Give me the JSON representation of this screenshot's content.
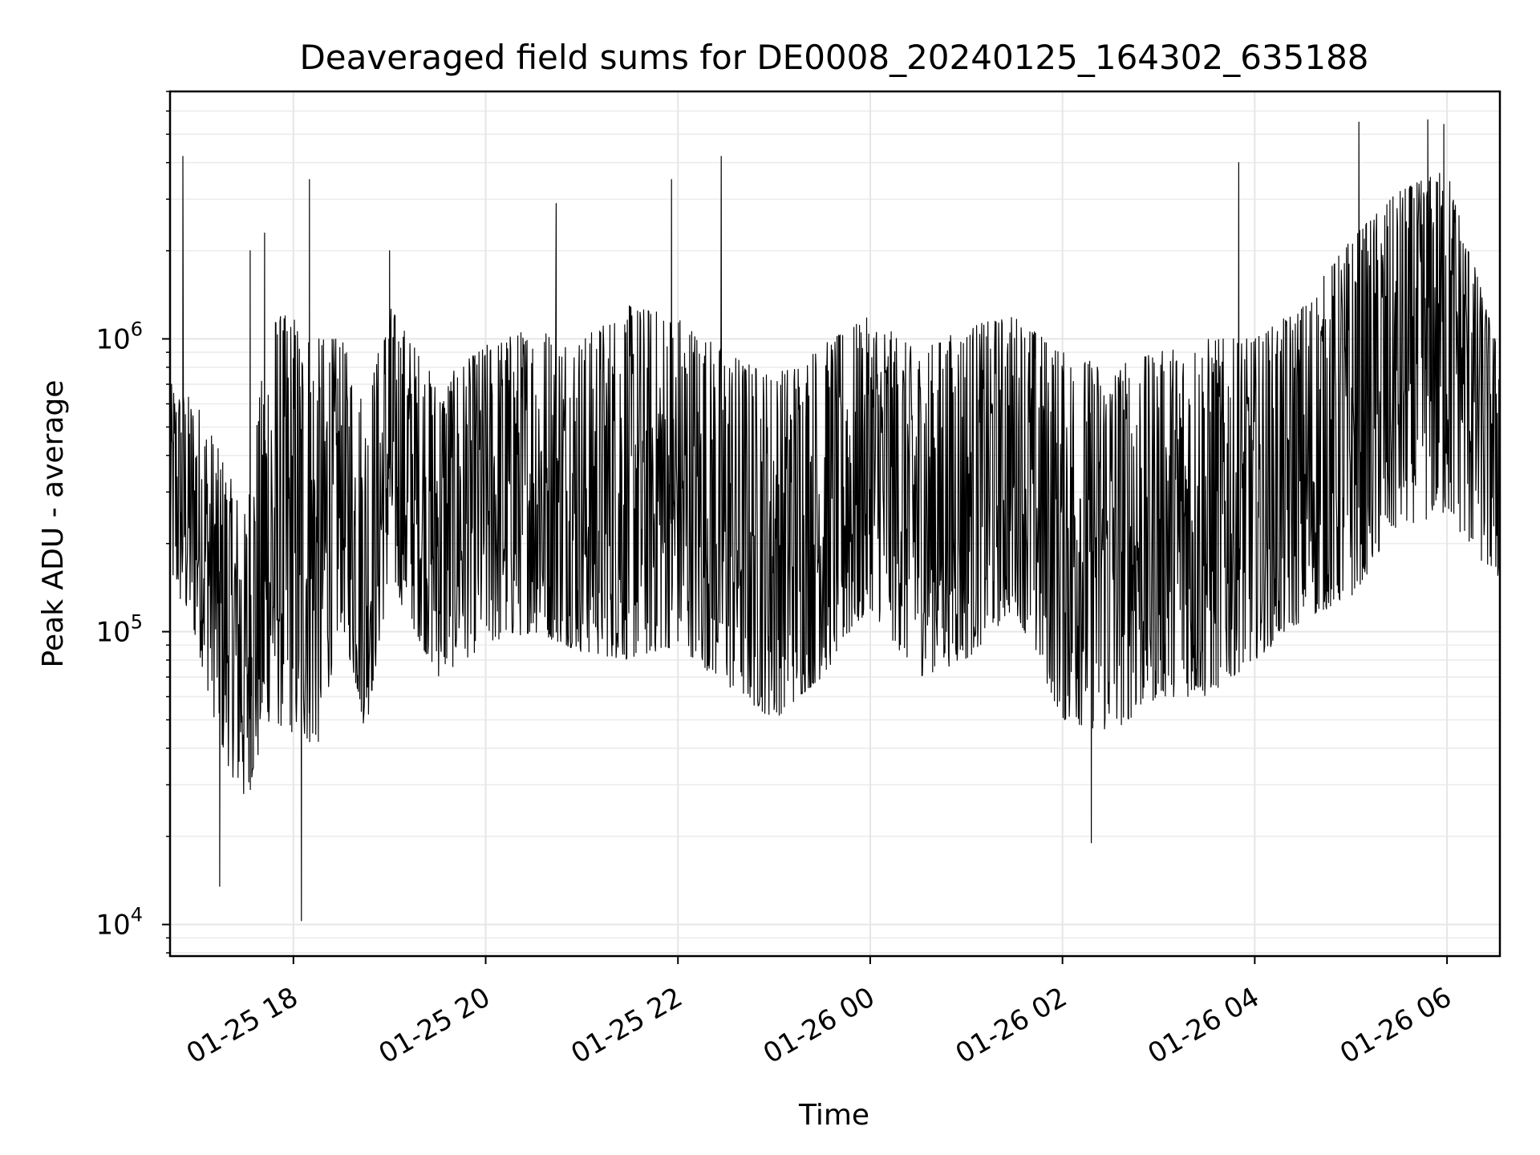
{
  "chart_data": {
    "type": "line",
    "title": "Deaveraged field sums for DE0008_20240125_164302_635188",
    "xlabel": "Time",
    "ylabel": "Peak ADU - average",
    "y_scale": "log",
    "grid": true,
    "line_color": "#000000",
    "xlim": [
      "2024-01-25 16:43",
      "2024-01-26 06:33"
    ],
    "ylim": [
      7800,
      7000000
    ],
    "x_ticks": [
      {
        "value": "2024-01-25 18:00",
        "label": "01-25 18"
      },
      {
        "value": "2024-01-25 20:00",
        "label": "01-25 20"
      },
      {
        "value": "2024-01-25 22:00",
        "label": "01-25 22"
      },
      {
        "value": "2024-01-26 00:00",
        "label": "01-26 00"
      },
      {
        "value": "2024-01-26 02:00",
        "label": "01-26 02"
      },
      {
        "value": "2024-01-26 04:00",
        "label": "01-26 04"
      },
      {
        "value": "2024-01-26 06:00",
        "label": "01-26 06"
      }
    ],
    "y_ticks": [
      {
        "value": 10000,
        "base": "10",
        "exp": "4"
      },
      {
        "value": 100000,
        "base": "10",
        "exp": "5"
      },
      {
        "value": 1000000,
        "base": "10",
        "exp": "6"
      }
    ],
    "series": [
      {
        "x": [
          "2024-01-25 16:45",
          "2024-01-25 17:00",
          "2024-01-25 17:15",
          "2024-01-25 17:30",
          "2024-01-25 17:45",
          "2024-01-25 18:00",
          "2024-01-25 18:15",
          "2024-01-25 18:30",
          "2024-01-25 18:45",
          "2024-01-25 19:00",
          "2024-01-25 19:30",
          "2024-01-25 20:00",
          "2024-01-25 20:30",
          "2024-01-25 21:00",
          "2024-01-25 21:30",
          "2024-01-25 22:00",
          "2024-01-25 22:30",
          "2024-01-25 23:00",
          "2024-01-25 23:30",
          "2024-01-26 00:00",
          "2024-01-26 00:30",
          "2024-01-26 01:00",
          "2024-01-26 01:30",
          "2024-01-26 02:00",
          "2024-01-26 02:30",
          "2024-01-26 03:00",
          "2024-01-26 03:30",
          "2024-01-26 04:00",
          "2024-01-26 04:30",
          "2024-01-26 05:00",
          "2024-01-26 05:30",
          "2024-01-26 06:00",
          "2024-01-26 06:30"
        ],
        "y_median": [
          280000,
          230000,
          120000,
          70000,
          150000,
          160000,
          150000,
          260000,
          120000,
          380000,
          200000,
          260000,
          290000,
          250000,
          260000,
          240000,
          210000,
          180000,
          220000,
          320000,
          240000,
          280000,
          350000,
          200000,
          180000,
          200000,
          190000,
          230000,
          280000,
          380000,
          600000,
          1200000,
          500000
        ],
        "y_low": [
          140000,
          90000,
          40000,
          25000,
          50000,
          45000,
          40000,
          110000,
          45000,
          150000,
          70000,
          90000,
          100000,
          85000,
          80000,
          90000,
          65000,
          50000,
          70000,
          120000,
          70000,
          80000,
          120000,
          50000,
          45000,
          60000,
          60000,
          80000,
          110000,
          130000,
          230000,
          250000,
          150000
        ],
        "y_high": [
          700000,
          600000,
          400000,
          250000,
          1200000,
          1200000,
          1000000,
          1000000,
          600000,
          1300000,
          700000,
          950000,
          1100000,
          1000000,
          1300000,
          1200000,
          900000,
          750000,
          950000,
          1200000,
          900000,
          1100000,
          1200000,
          900000,
          800000,
          900000,
          1000000,
          1000000,
          1300000,
          2200000,
          3200000,
          3800000,
          1000000
        ],
        "y_spikes": [
          {
            "x": "2024-01-25 16:51",
            "y": 4200000
          },
          {
            "x": "2024-01-25 17:14",
            "y": 13500
          },
          {
            "x": "2024-01-25 17:33",
            "y": 2000000
          },
          {
            "x": "2024-01-25 17:42",
            "y": 2300000
          },
          {
            "x": "2024-01-25 18:05",
            "y": 10300
          },
          {
            "x": "2024-01-25 18:10",
            "y": 3500000
          },
          {
            "x": "2024-01-25 19:00",
            "y": 2000000
          },
          {
            "x": "2024-01-25 20:44",
            "y": 2900000
          },
          {
            "x": "2024-01-25 21:56",
            "y": 3500000
          },
          {
            "x": "2024-01-25 22:27",
            "y": 4200000
          },
          {
            "x": "2024-01-26 02:18",
            "y": 19000
          },
          {
            "x": "2024-01-26 03:50",
            "y": 4000000
          },
          {
            "x": "2024-01-26 05:05",
            "y": 5500000
          },
          {
            "x": "2024-01-26 05:48",
            "y": 5600000
          },
          {
            "x": "2024-01-26 05:58",
            "y": 5400000
          }
        ]
      }
    ]
  }
}
